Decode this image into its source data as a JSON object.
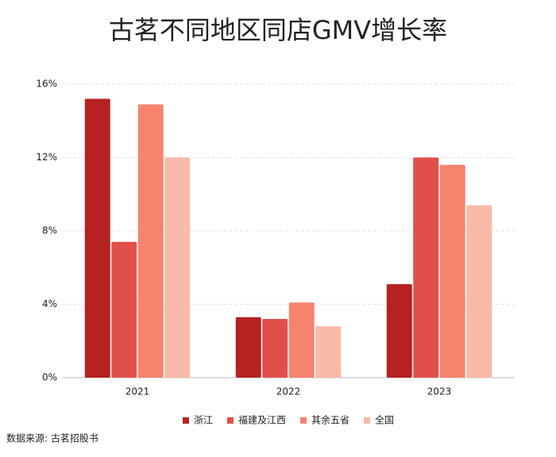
{
  "chart_data": {
    "type": "bar",
    "title": "古茗不同地区同店GMV增长率",
    "categories": [
      "2021",
      "2022",
      "2023"
    ],
    "series": [
      {
        "name": "浙江",
        "color": "#b52220",
        "values": [
          15.2,
          3.3,
          5.1
        ]
      },
      {
        "name": "福建及江西",
        "color": "#e14f4a",
        "values": [
          7.4,
          3.2,
          12.0
        ]
      },
      {
        "name": "其余五省",
        "color": "#f5846f",
        "values": [
          14.9,
          4.1,
          11.6
        ]
      },
      {
        "name": "全国",
        "color": "#f9baa9",
        "values": [
          12.0,
          2.8,
          9.4
        ]
      }
    ],
    "ylim": [
      0,
      16
    ],
    "yticks": [
      {
        "value": 0,
        "label": "0%"
      },
      {
        "value": 4,
        "label": "4%"
      },
      {
        "value": 8,
        "label": "8%"
      },
      {
        "value": 12,
        "label": "12%"
      },
      {
        "value": 16,
        "label": "16%"
      }
    ],
    "grid": true,
    "legend": "bottom",
    "source": "数据来源: 古茗招股书"
  }
}
